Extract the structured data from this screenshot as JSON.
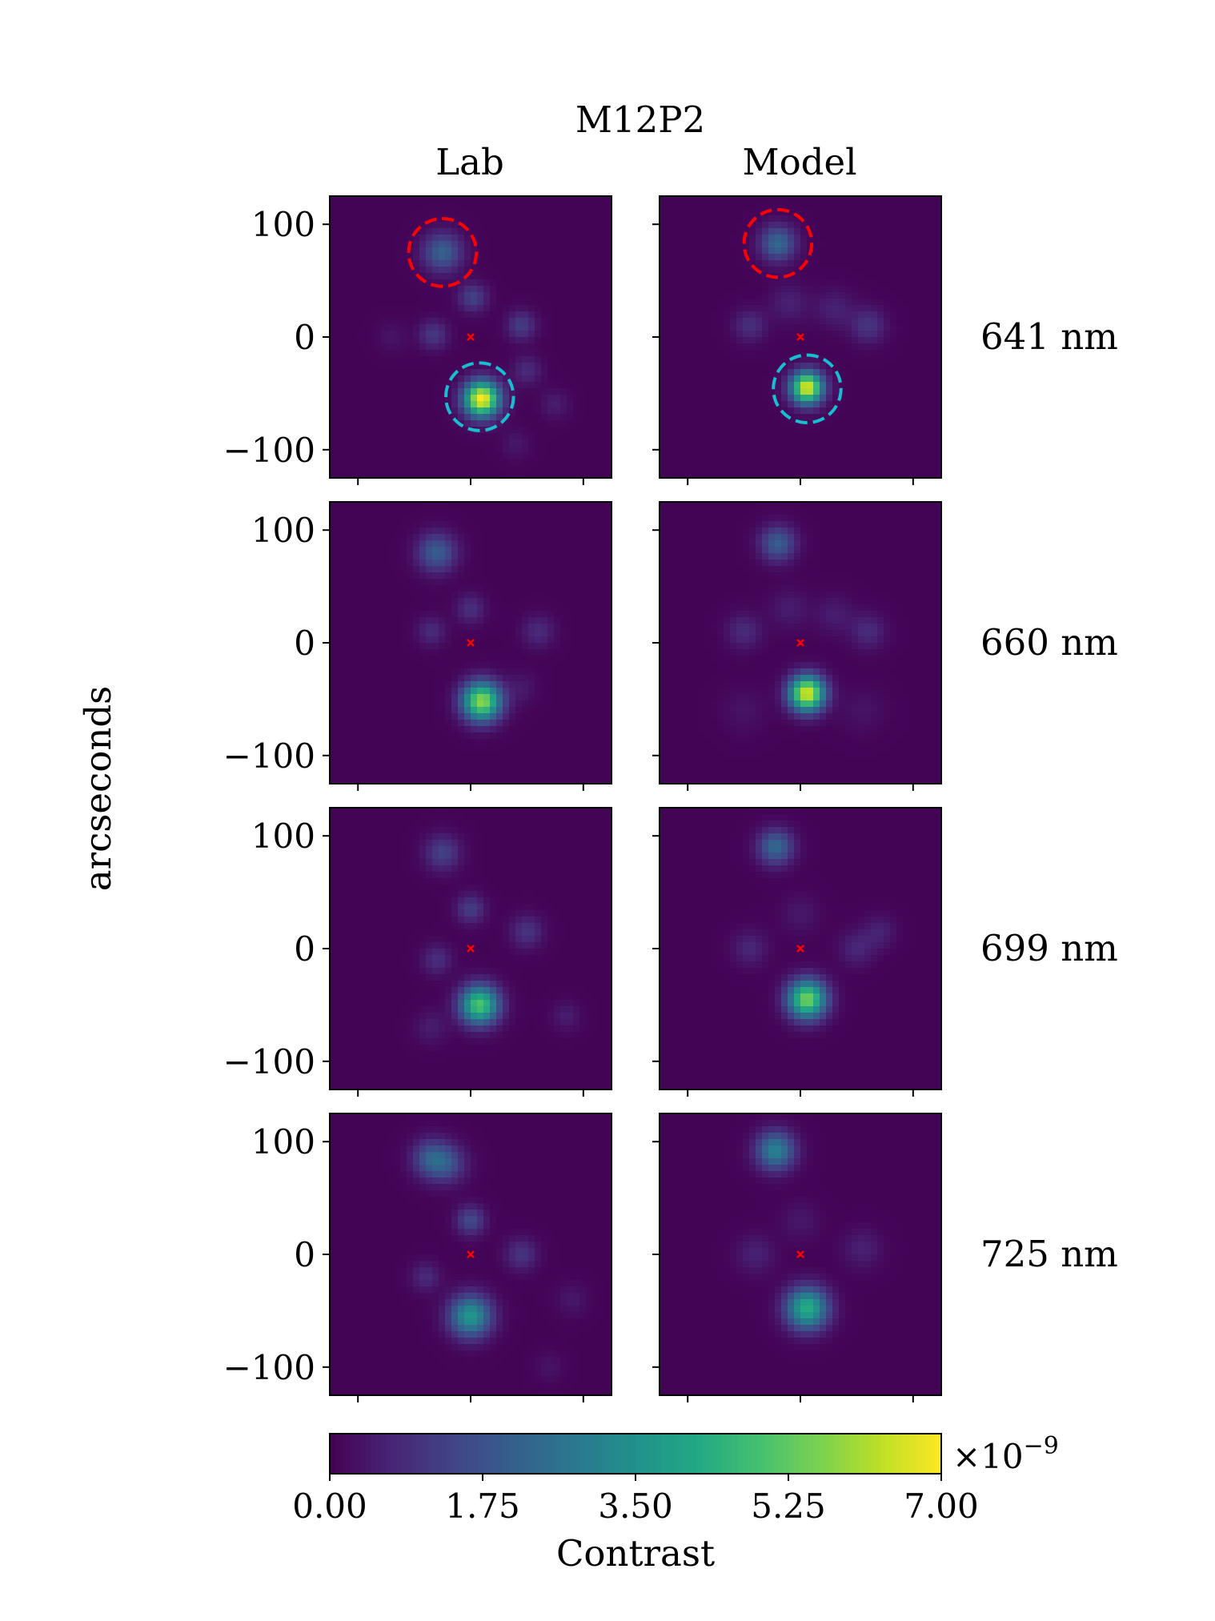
{
  "figure": {
    "title": "M12P2",
    "col_titles": [
      "Lab",
      "Model"
    ],
    "ylabel": "arcseconds",
    "colors": {
      "target_circle": "#ff0000",
      "star_circle": "#17becf",
      "center_marker": "#ff0000"
    }
  },
  "chart_data": {
    "type": "heatmap",
    "title": "M12P2",
    "columns": [
      "Lab",
      "Model"
    ],
    "rows": [
      "641 nm",
      "660 nm",
      "699 nm",
      "725 nm"
    ],
    "ylabel": "arcseconds",
    "xlim": [
      -125,
      125
    ],
    "ylim": [
      -125,
      125
    ],
    "yticks": [
      100,
      0,
      -100
    ],
    "ytick_labels": [
      "100",
      "0",
      "−100"
    ],
    "xticks": [
      -100,
      0,
      100
    ],
    "colormap": "viridis",
    "colorbar": {
      "label": "Contrast",
      "range": [
        0.0,
        7.0
      ],
      "ticks": [
        0.0,
        1.75,
        3.5,
        5.25,
        7.0
      ],
      "tick_labels": [
        "0.00",
        "1.75",
        "3.50",
        "5.25",
        "7.00"
      ],
      "multiplier": "×10",
      "exponent": "−9"
    },
    "panels": [
      {
        "row": "641 nm",
        "col": "Lab",
        "circles": [
          {
            "x": -25,
            "y": 75,
            "r": 30,
            "color": "red"
          },
          {
            "x": 8,
            "y": -53,
            "r": 30,
            "color": "cyan"
          }
        ],
        "blobs": [
          {
            "x": 10,
            "y": -55,
            "amp": 7.0,
            "s": 11
          },
          {
            "x": -25,
            "y": 75,
            "amp": 2.1,
            "s": 12
          },
          {
            "x": 2,
            "y": 35,
            "amp": 1.3,
            "s": 9
          },
          {
            "x": -33,
            "y": 2,
            "amp": 1.1,
            "s": 9
          },
          {
            "x": 45,
            "y": 10,
            "amp": 1.2,
            "s": 9
          },
          {
            "x": 50,
            "y": -30,
            "amp": 0.8,
            "s": 9
          },
          {
            "x": 75,
            "y": -60,
            "amp": 0.5,
            "s": 9
          },
          {
            "x": 40,
            "y": -95,
            "amp": 0.4,
            "s": 9
          },
          {
            "x": -70,
            "y": 0,
            "amp": 0.3,
            "s": 10
          }
        ]
      },
      {
        "row": "641 nm",
        "col": "Model",
        "circles": [
          {
            "x": -20,
            "y": 83,
            "r": 30,
            "color": "red"
          },
          {
            "x": 6,
            "y": -46,
            "r": 30,
            "color": "cyan"
          }
        ],
        "blobs": [
          {
            "x": 6,
            "y": -45,
            "amp": 6.7,
            "s": 10
          },
          {
            "x": -20,
            "y": 83,
            "amp": 2.3,
            "s": 11
          },
          {
            "x": -45,
            "y": 10,
            "amp": 0.9,
            "s": 10
          },
          {
            "x": 60,
            "y": 10,
            "amp": 1.0,
            "s": 11
          },
          {
            "x": -10,
            "y": 30,
            "amp": 0.6,
            "s": 12
          },
          {
            "x": 30,
            "y": 25,
            "amp": 0.6,
            "s": 12
          }
        ]
      },
      {
        "row": "660 nm",
        "col": "Lab",
        "circles": [],
        "blobs": [
          {
            "x": 10,
            "y": -52,
            "amp": 5.8,
            "s": 12
          },
          {
            "x": -30,
            "y": 80,
            "amp": 2.0,
            "s": 12
          },
          {
            "x": 0,
            "y": 30,
            "amp": 0.9,
            "s": 9
          },
          {
            "x": -35,
            "y": 10,
            "amp": 0.8,
            "s": 9
          },
          {
            "x": 60,
            "y": 10,
            "amp": 0.8,
            "s": 10
          },
          {
            "x": 45,
            "y": -40,
            "amp": 0.4,
            "s": 10
          }
        ]
      },
      {
        "row": "660 nm",
        "col": "Model",
        "circles": [],
        "blobs": [
          {
            "x": 6,
            "y": -45,
            "amp": 6.6,
            "s": 11
          },
          {
            "x": -20,
            "y": 88,
            "amp": 2.0,
            "s": 11
          },
          {
            "x": -50,
            "y": 10,
            "amp": 0.8,
            "s": 11
          },
          {
            "x": 60,
            "y": 10,
            "amp": 0.8,
            "s": 11
          },
          {
            "x": -10,
            "y": 30,
            "amp": 0.5,
            "s": 12
          },
          {
            "x": 30,
            "y": 25,
            "amp": 0.5,
            "s": 12
          },
          {
            "x": -50,
            "y": -60,
            "amp": 0.3,
            "s": 14
          },
          {
            "x": 55,
            "y": -60,
            "amp": 0.3,
            "s": 14
          }
        ]
      },
      {
        "row": "699 nm",
        "col": "Lab",
        "circles": [],
        "blobs": [
          {
            "x": 8,
            "y": -50,
            "amp": 5.0,
            "s": 12
          },
          {
            "x": -25,
            "y": 85,
            "amp": 1.3,
            "s": 11
          },
          {
            "x": 0,
            "y": 35,
            "amp": 1.2,
            "s": 9
          },
          {
            "x": -30,
            "y": -10,
            "amp": 0.9,
            "s": 9
          },
          {
            "x": 50,
            "y": 15,
            "amp": 1.0,
            "s": 10
          },
          {
            "x": 85,
            "y": -60,
            "amp": 0.5,
            "s": 9
          },
          {
            "x": -35,
            "y": -70,
            "amp": 0.5,
            "s": 10
          }
        ]
      },
      {
        "row": "699 nm",
        "col": "Model",
        "circles": [],
        "blobs": [
          {
            "x": 6,
            "y": -45,
            "amp": 5.5,
            "s": 12
          },
          {
            "x": -22,
            "y": 90,
            "amp": 2.3,
            "s": 11
          },
          {
            "x": -45,
            "y": 0,
            "amp": 0.7,
            "s": 11
          },
          {
            "x": 50,
            "y": 0,
            "amp": 0.7,
            "s": 11
          },
          {
            "x": 70,
            "y": 15,
            "amp": 0.6,
            "s": 10
          },
          {
            "x": 0,
            "y": 30,
            "amp": 0.4,
            "s": 12
          }
        ]
      },
      {
        "row": "725 nm",
        "col": "Lab",
        "circles": [],
        "blobs": [
          {
            "x": 0,
            "y": -55,
            "amp": 3.6,
            "s": 13
          },
          {
            "x": -35,
            "y": 85,
            "amp": 1.8,
            "s": 12
          },
          {
            "x": -20,
            "y": 80,
            "amp": 1.3,
            "s": 12
          },
          {
            "x": 0,
            "y": 30,
            "amp": 1.5,
            "s": 9
          },
          {
            "x": 45,
            "y": 0,
            "amp": 1.0,
            "s": 10
          },
          {
            "x": -40,
            "y": -20,
            "amp": 0.8,
            "s": 9
          },
          {
            "x": 90,
            "y": -40,
            "amp": 0.4,
            "s": 10
          },
          {
            "x": 70,
            "y": -100,
            "amp": 0.3,
            "s": 9
          }
        ]
      },
      {
        "row": "725 nm",
        "col": "Model",
        "circles": [],
        "blobs": [
          {
            "x": 6,
            "y": -48,
            "amp": 4.3,
            "s": 13
          },
          {
            "x": -22,
            "y": 92,
            "amp": 3.0,
            "s": 12
          },
          {
            "x": -40,
            "y": 0,
            "amp": 0.6,
            "s": 12
          },
          {
            "x": 55,
            "y": 5,
            "amp": 0.6,
            "s": 12
          },
          {
            "x": 0,
            "y": 30,
            "amp": 0.4,
            "s": 12
          }
        ]
      }
    ]
  }
}
